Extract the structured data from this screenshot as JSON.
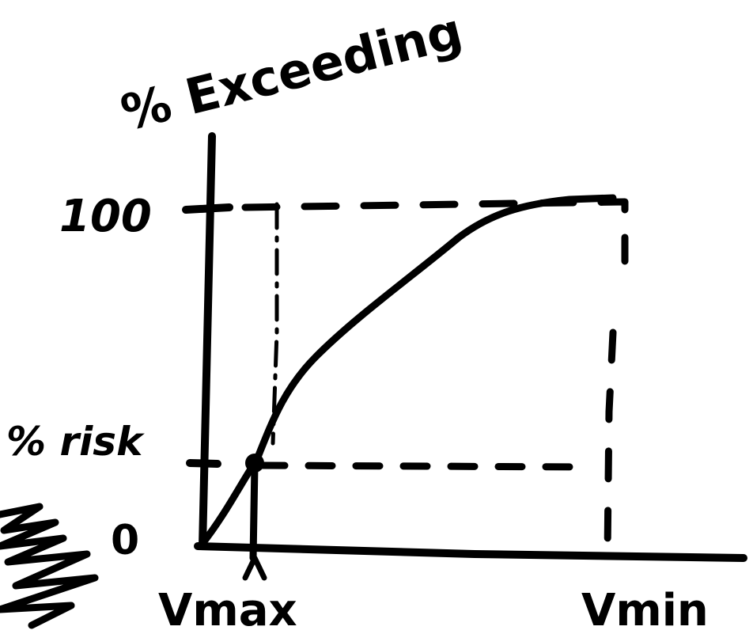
{
  "axis_title": "% Exceeding",
  "y_labels": {
    "top": "100",
    "risk": "% risk",
    "zero": "0"
  },
  "x_labels": {
    "left": "Vmax",
    "right": "Vmin"
  }
}
